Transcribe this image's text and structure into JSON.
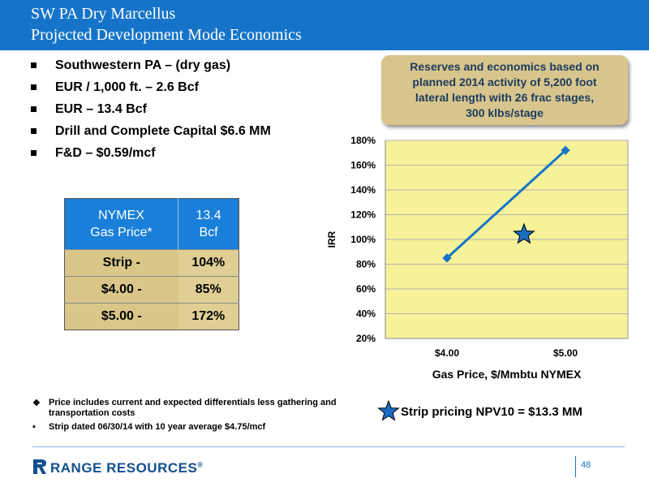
{
  "slide": {
    "title_line1": "SW PA Dry Marcellus",
    "title_line2": "Projected Development Mode Economics",
    "page_number": "48",
    "company": "RANGE RESOURCES",
    "trademark": "®",
    "colors": {
      "header": "#1674c8",
      "table_head": "#1a7fd8",
      "table_body": "#e6d6a2",
      "plot_bg": "#f5f29a",
      "line": "#1874c8"
    }
  },
  "bullets": [
    "Southwestern PA – (dry gas)",
    "EUR / 1,000 ft. – 2.6 Bcf",
    "EUR – 13.4 Bcf",
    "Drill and Complete Capital $6.6 MM",
    "F&D – $0.59/mcf"
  ],
  "table": {
    "header_col1_line1": "NYMEX",
    "header_col1_line2": "Gas Price*",
    "header_col2_line1": "13.4",
    "header_col2_line2": "Bcf",
    "rows": [
      {
        "price": "Strip -",
        "irr": "104%"
      },
      {
        "price": "$4.00   -",
        "irr": "85%"
      },
      {
        "price": "$5.00   -",
        "irr": "172%"
      }
    ]
  },
  "callout": {
    "line1": "Reserves and economics based on",
    "line2": "planned 2014 activity of 5,200 foot",
    "line3": "lateral length with 26 frac stages,",
    "line4": "300 klbs/stage"
  },
  "chart_data": {
    "type": "line",
    "x": [
      "$4.00",
      "$5.00"
    ],
    "series": [
      {
        "values": [
          85,
          172
        ]
      }
    ],
    "marker": {
      "label": "Strip pricing NPV10 = $13.3 MM",
      "x_position": 4.65,
      "y": 104,
      "shape": "star"
    },
    "xlabel": "Gas Price, $/Mmbtu NYMEX",
    "ylabel": "IRR",
    "ylim": [
      20,
      180
    ],
    "yticks": [
      20,
      40,
      60,
      80,
      100,
      120,
      140,
      160,
      180
    ],
    "ytick_labels": [
      "20%",
      "40%",
      "60%",
      "80%",
      "100%",
      "120%",
      "140%",
      "160%",
      "180%"
    ],
    "grid": true
  },
  "notes": [
    {
      "marker": "❖",
      "text": "Price includes current and expected differentials less gathering and transportation costs"
    },
    {
      "marker": "▪",
      "text": "Strip dated 06/30/14 with 10 year average $4.75/mcf"
    }
  ]
}
